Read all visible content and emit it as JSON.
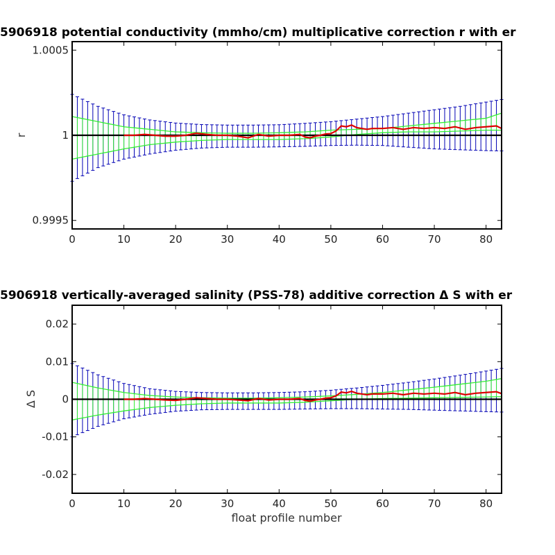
{
  "colors": {
    "background": "#ffffff",
    "axes": "#000000",
    "errorbar_blue": "#0000b4",
    "envelope_green": "#33ee33",
    "correction_red": "#dd0000",
    "zero_line": "#000000"
  },
  "chart_data": [
    {
      "type": "line",
      "title": "5906918 potential conductivity (mmho/cm) multiplicative correction r with er",
      "xlabel": "",
      "ylabel": "r",
      "xlim": [
        0,
        83
      ],
      "ylim": [
        0.99945,
        1.00055
      ],
      "xticks": [
        0,
        10,
        20,
        30,
        40,
        50,
        60,
        70,
        80
      ],
      "xtick_labels": [
        "0",
        "10",
        "20",
        "30",
        "40",
        "50",
        "60",
        "70",
        "80"
      ],
      "yticks": [
        0.9995,
        1,
        1.0005
      ],
      "ytick_labels": [
        "0.9995",
        "1",
        "1.0005"
      ],
      "grid": false,
      "baseline": 1,
      "error_envelope": {
        "name": "2x error",
        "x": [
          0,
          5,
          10,
          15,
          20,
          25,
          30,
          35,
          40,
          45,
          50,
          55,
          60,
          65,
          70,
          75,
          80,
          83
        ],
        "upper": [
          1.00024,
          1.00017,
          1.00012,
          1.00009,
          1.000072,
          1.000063,
          1.00006,
          1.00006,
          1.000062,
          1.00007,
          1.00008,
          1.000095,
          1.00011,
          1.00013,
          1.00015,
          1.00017,
          1.000195,
          1.00021
        ],
        "lower": [
          0.99973,
          0.99981,
          0.99986,
          0.99989,
          0.999912,
          0.999925,
          0.99993,
          0.99993,
          0.999932,
          0.999935,
          0.99994,
          0.999942,
          0.99994,
          0.99993,
          0.99992,
          0.999915,
          0.99991,
          0.999908
        ]
      },
      "green_envelope": {
        "name": "1x error",
        "x": [
          0,
          5,
          10,
          15,
          20,
          25,
          30,
          35,
          40,
          45,
          50,
          55,
          60,
          65,
          70,
          75,
          80,
          83
        ],
        "upper": [
          1.00011,
          1.00008,
          1.00005,
          1.000035,
          1.00002,
          1.000015,
          1.000012,
          1.000012,
          1.000015,
          1.00002,
          1.00003,
          1.000035,
          1.00004,
          1.000055,
          1.00007,
          1.000085,
          1.0001,
          1.00013
        ],
        "lower": [
          0.99986,
          0.99989,
          0.99992,
          0.999945,
          0.99996,
          0.99997,
          0.999975,
          0.999975,
          0.999975,
          0.99998,
          0.99999,
          1.000005,
          1.000015,
          1.00002,
          1.00002,
          1.000025,
          1.00003,
          1.00003
        ]
      },
      "correction": {
        "x": [
          10,
          12,
          14,
          16,
          18,
          20,
          22,
          24,
          26,
          28,
          30,
          32,
          34,
          36,
          38,
          40,
          42,
          44,
          45,
          46,
          47,
          48,
          49,
          50,
          51,
          52,
          53,
          54,
          55,
          56,
          57,
          58,
          60,
          62,
          64,
          66,
          68,
          70,
          72,
          74,
          76,
          78,
          80,
          82,
          83
        ],
        "values": [
          1.0,
          1.0,
          1.000005,
          1.0,
          0.999995,
          0.999995,
          1.0,
          1.000012,
          1.000005,
          1.0,
          1.0,
          0.999995,
          0.999985,
          1.000005,
          0.999995,
          1.0,
          1.0,
          1.000005,
          0.99999,
          0.999985,
          0.999995,
          1.0,
          1.000008,
          1.00001,
          1.000025,
          1.000055,
          1.00005,
          1.00006,
          1.000045,
          1.00004,
          1.000035,
          1.00004,
          1.00004,
          1.000045,
          1.000035,
          1.000045,
          1.00004,
          1.000045,
          1.00004,
          1.00005,
          1.000035,
          1.000045,
          1.00005,
          1.000055,
          1.00004
        ]
      }
    },
    {
      "type": "line",
      "title": "5906918 vertically-averaged salinity (PSS-78) additive correction Δ S with er",
      "xlabel": "float profile number",
      "ylabel": "Δ S",
      "xlim": [
        0,
        83
      ],
      "ylim": [
        -0.025,
        0.025
      ],
      "xticks": [
        0,
        10,
        20,
        30,
        40,
        50,
        60,
        70,
        80
      ],
      "xtick_labels": [
        "0",
        "10",
        "20",
        "30",
        "40",
        "50",
        "60",
        "70",
        "80"
      ],
      "yticks": [
        -0.02,
        -0.01,
        0,
        0.01,
        0.02
      ],
      "ytick_labels": [
        "-0.02",
        "-0.01",
        "0",
        "0.01",
        "0.02"
      ],
      "grid": false,
      "baseline": 0,
      "error_envelope": {
        "name": "2x error",
        "x": [
          0,
          5,
          10,
          15,
          20,
          25,
          30,
          35,
          40,
          45,
          50,
          55,
          60,
          65,
          70,
          75,
          80,
          83
        ],
        "upper": [
          0.0095,
          0.0065,
          0.0042,
          0.0028,
          0.0021,
          0.0018,
          0.0017,
          0.0017,
          0.0018,
          0.002,
          0.0024,
          0.003,
          0.0037,
          0.0045,
          0.0054,
          0.0064,
          0.0075,
          0.0082
        ],
        "lower": [
          -0.01,
          -0.0072,
          -0.0052,
          -0.004,
          -0.0032,
          -0.0028,
          -0.0027,
          -0.0027,
          -0.0027,
          -0.0026,
          -0.0025,
          -0.0025,
          -0.0026,
          -0.0027,
          -0.0029,
          -0.0031,
          -0.0033,
          -0.0034
        ]
      },
      "green_envelope": {
        "name": "1x error",
        "x": [
          0,
          5,
          10,
          15,
          20,
          25,
          30,
          35,
          40,
          45,
          50,
          55,
          60,
          65,
          70,
          75,
          80,
          83
        ],
        "upper": [
          0.0045,
          0.003,
          0.0018,
          0.001,
          0.0006,
          0.0004,
          0.0003,
          0.0003,
          0.0004,
          0.0006,
          0.0009,
          0.0013,
          0.0018,
          0.0025,
          0.0032,
          0.004,
          0.0048,
          0.0055
        ],
        "lower": [
          -0.0055,
          -0.0042,
          -0.0031,
          -0.0022,
          -0.0016,
          -0.0012,
          -0.001,
          -0.001,
          -0.001,
          -0.0008,
          -0.0004,
          0.0,
          0.0002,
          0.0003,
          0.0004,
          0.0005,
          0.0006,
          0.0007
        ]
      },
      "correction": {
        "x": [
          10,
          12,
          14,
          16,
          18,
          20,
          22,
          24,
          26,
          28,
          30,
          32,
          34,
          36,
          38,
          40,
          42,
          44,
          45,
          46,
          47,
          48,
          49,
          50,
          51,
          52,
          53,
          54,
          55,
          56,
          57,
          58,
          60,
          62,
          64,
          66,
          68,
          70,
          72,
          74,
          76,
          78,
          80,
          82,
          83
        ],
        "values": [
          0.0,
          0.0,
          0.0002,
          0.0,
          -0.0002,
          -0.0003,
          0.0,
          0.0004,
          0.0002,
          0.0,
          0.0,
          -0.0002,
          -0.0004,
          0.0002,
          -0.0002,
          0.0,
          0.0,
          0.0002,
          -0.0003,
          -0.0005,
          -0.0002,
          0.0,
          0.0003,
          0.0004,
          0.0009,
          0.0019,
          0.0017,
          0.0021,
          0.0016,
          0.0014,
          0.0012,
          0.0014,
          0.0014,
          0.0016,
          0.0012,
          0.0016,
          0.0014,
          0.0016,
          0.0014,
          0.0018,
          0.0012,
          0.0016,
          0.0018,
          0.002,
          0.0015
        ]
      }
    }
  ]
}
